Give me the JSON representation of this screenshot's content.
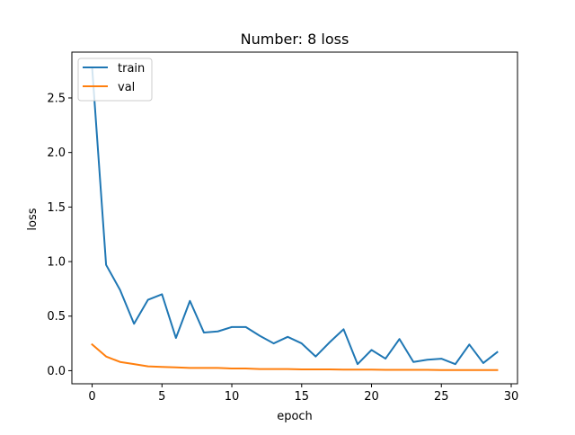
{
  "chart_data": {
    "type": "line",
    "title": "Number: 8 loss",
    "xlabel": "epoch",
    "ylabel": "loss",
    "xlim": [
      -1.45,
      30.45
    ],
    "ylim": [
      -0.12,
      2.92
    ],
    "xticks": [
      0,
      5,
      10,
      15,
      20,
      25,
      30
    ],
    "yticks": [
      0.0,
      0.5,
      1.0,
      1.5,
      2.0,
      2.5
    ],
    "xtick_labels": [
      "0",
      "5",
      "10",
      "15",
      "20",
      "25",
      "30"
    ],
    "ytick_labels": [
      "0.0",
      "0.5",
      "1.0",
      "1.5",
      "2.0",
      "2.5"
    ],
    "grid": false,
    "legend_position": "upper-left",
    "x": [
      0,
      1,
      2,
      3,
      4,
      5,
      6,
      7,
      8,
      9,
      10,
      11,
      12,
      13,
      14,
      15,
      16,
      17,
      18,
      19,
      20,
      21,
      22,
      23,
      24,
      25,
      26,
      27,
      28,
      29
    ],
    "series": [
      {
        "name": "train",
        "color": "#1f77b4",
        "values": [
          2.78,
          0.97,
          0.74,
          0.43,
          0.65,
          0.7,
          0.3,
          0.64,
          0.35,
          0.36,
          0.4,
          0.4,
          0.32,
          0.25,
          0.31,
          0.25,
          0.13,
          0.26,
          0.38,
          0.06,
          0.19,
          0.11,
          0.29,
          0.08,
          0.1,
          0.11,
          0.06,
          0.24,
          0.07,
          0.17
        ]
      },
      {
        "name": "val",
        "color": "#ff7f0e",
        "values": [
          0.24,
          0.13,
          0.08,
          0.06,
          0.04,
          0.035,
          0.03,
          0.025,
          0.025,
          0.025,
          0.02,
          0.02,
          0.015,
          0.015,
          0.015,
          0.012,
          0.012,
          0.012,
          0.01,
          0.01,
          0.01,
          0.008,
          0.008,
          0.008,
          0.008,
          0.006,
          0.006,
          0.006,
          0.006,
          0.006
        ]
      }
    ]
  }
}
